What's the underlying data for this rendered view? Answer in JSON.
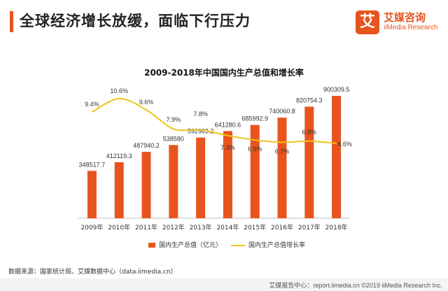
{
  "header": {
    "title": "全球经济增长放缓，面临下行压力"
  },
  "logo": {
    "glyph": "艾",
    "name_cn": "艾媒咨询",
    "name_en": "iiMedia Research"
  },
  "colors": {
    "accent": "#e8541e",
    "bar": "#e8541e",
    "line": "#f0c419",
    "axis": "#bfbfbf"
  },
  "chart_data": {
    "type": "bar",
    "title": "2009-2018年中国国内生产总值和增长率",
    "categories": [
      "2009年",
      "2010年",
      "2011年",
      "2012年",
      "2013年",
      "2014年",
      "2015年",
      "2016年",
      "2017年",
      "2018年"
    ],
    "series": [
      {
        "name": "国内生产总值（亿元）",
        "type": "bar",
        "values": [
          348517.7,
          412119.3,
          487940.2,
          538580,
          592963.2,
          641280.6,
          685992.9,
          740060.8,
          820754.3,
          900309.5
        ],
        "labels": [
          "348517.7",
          "412119.3",
          "487940.2",
          "538580",
          "592963.2",
          "641280.6",
          "685992.9",
          "740060.8",
          "820754.3",
          "900309.5"
        ]
      },
      {
        "name": "国内生产总值增长率",
        "type": "line",
        "values": [
          9.4,
          10.6,
          9.6,
          7.9,
          7.8,
          7.3,
          6.9,
          6.7,
          6.8,
          6.6
        ],
        "labels": [
          "9.4%",
          "10.6%",
          "9.6%",
          "7.9%",
          "7.8%",
          "7.3%",
          "6.9%",
          "6.7%",
          "6.8%",
          "6.6%"
        ]
      }
    ],
    "legend_position": "bottom",
    "grid": false
  },
  "source": "数据来源：国家统计局、艾媒数据中心（data.iimedia.cn）",
  "footer": "艾媒报告中心：report.iimedia.cn   ©2019  iiMedia Research  Inc."
}
